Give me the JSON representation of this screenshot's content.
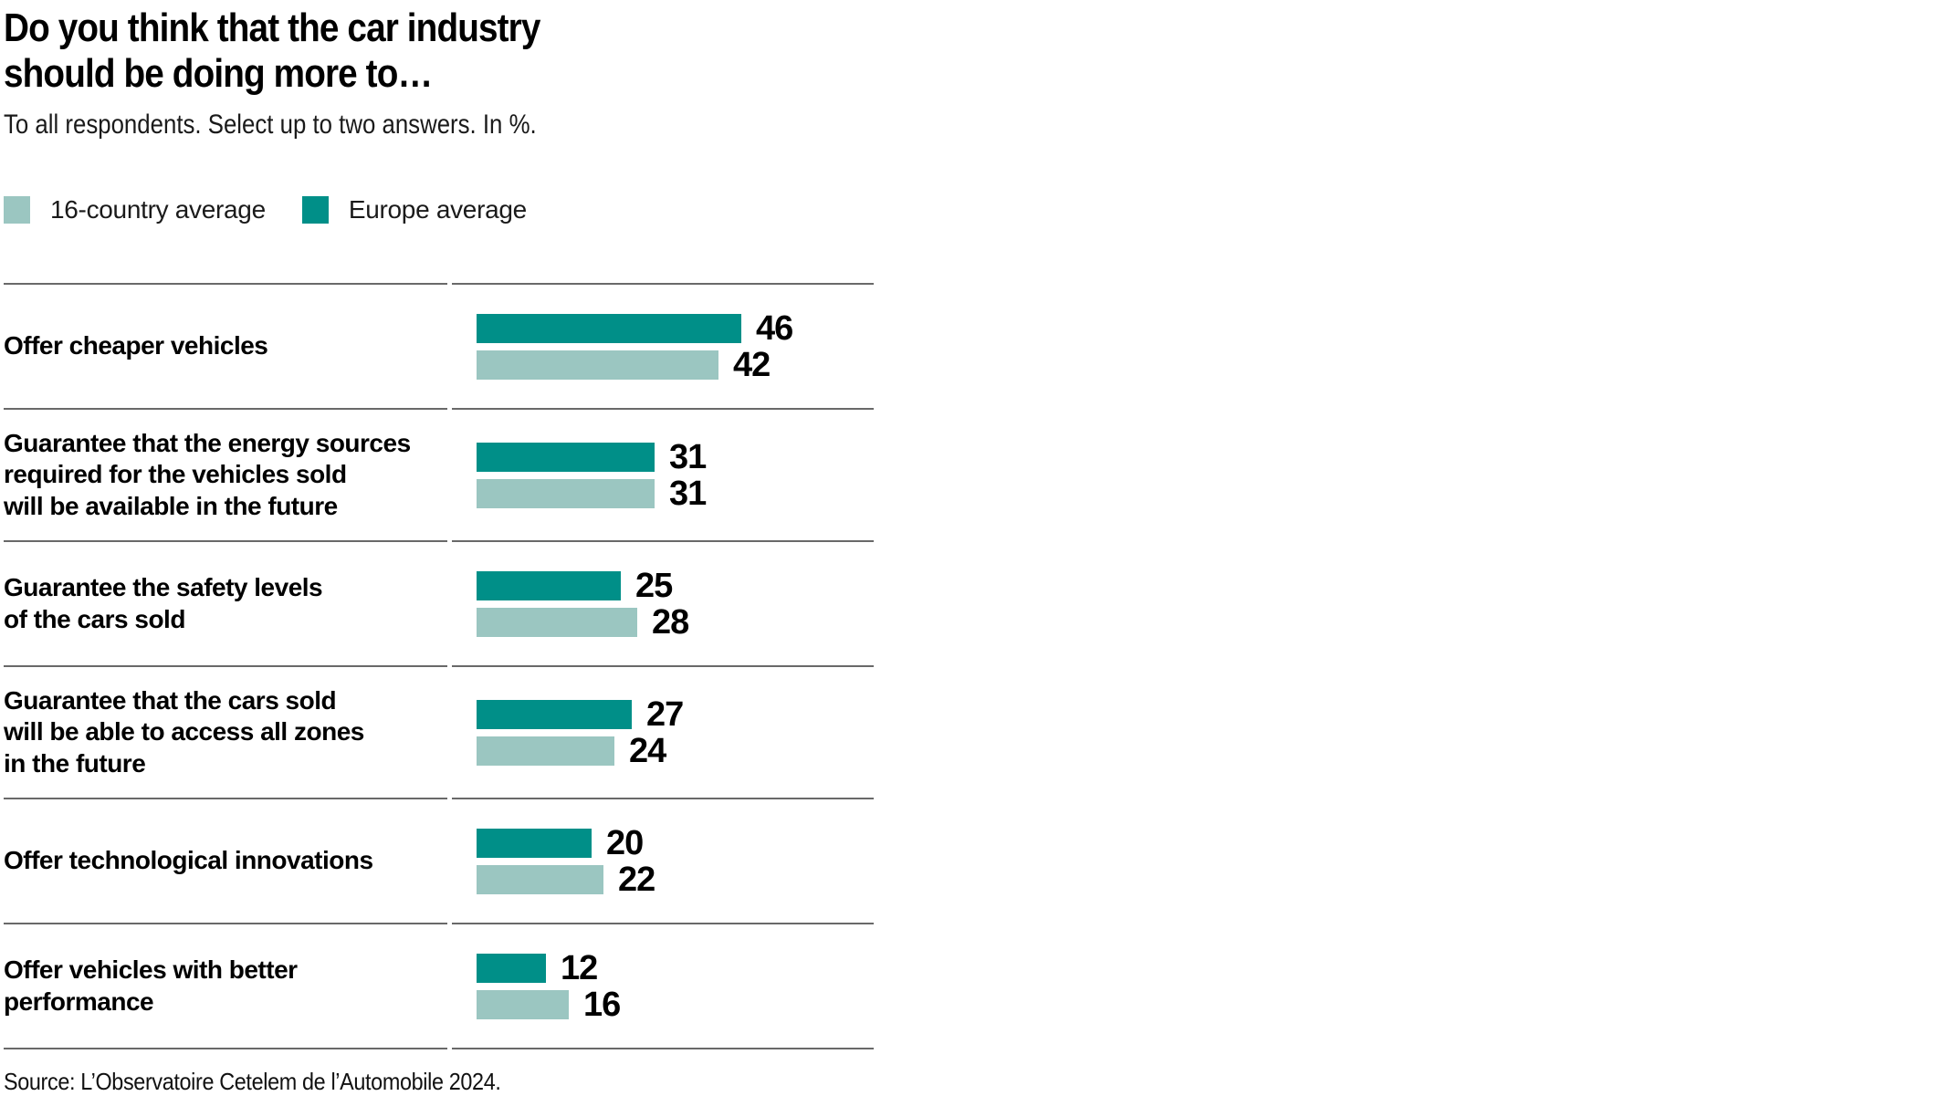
{
  "header": {
    "title_line1": "Do you think that the car industry",
    "title_line2": "should be doing more to…",
    "subtitle": "To all respondents. Select up to two answers. In %."
  },
  "legend": {
    "items": [
      {
        "label": "16-country average",
        "color": "#9BC6C1"
      },
      {
        "label": "Europe average",
        "color": "#008F88"
      }
    ]
  },
  "chart_data": {
    "type": "bar",
    "orientation": "horizontal",
    "unit": "%",
    "title": "Do you think that the car industry should be doing more to…",
    "subtitle": "To all respondents. Select up to two answers. In %.",
    "categories": [
      "Offer cheaper vehicles",
      "Guarantee that the energy sources\nrequired for the vehicles sold\nwill be available in the future",
      "Guarantee the safety levels\nof the cars sold",
      "Guarantee that the cars sold\nwill be able to access all zones\nin the future",
      "Offer technological innovations",
      "Offer vehicles with better\nperformance"
    ],
    "series": [
      {
        "name": "Europe average",
        "color": "#008F88",
        "values": [
          46,
          31,
          25,
          27,
          20,
          12
        ]
      },
      {
        "name": "16-country average",
        "color": "#9BC6C1",
        "values": [
          42,
          31,
          28,
          24,
          22,
          16
        ]
      }
    ],
    "bar_order": [
      "Europe average",
      "16-country average"
    ],
    "xlim": [
      0,
      50
    ],
    "grid": false,
    "legend_position": "top",
    "value_labels": true,
    "row_separator_color": "#696969"
  },
  "source": "Source: L’Observatoire Cetelem de l’Automobile 2024."
}
